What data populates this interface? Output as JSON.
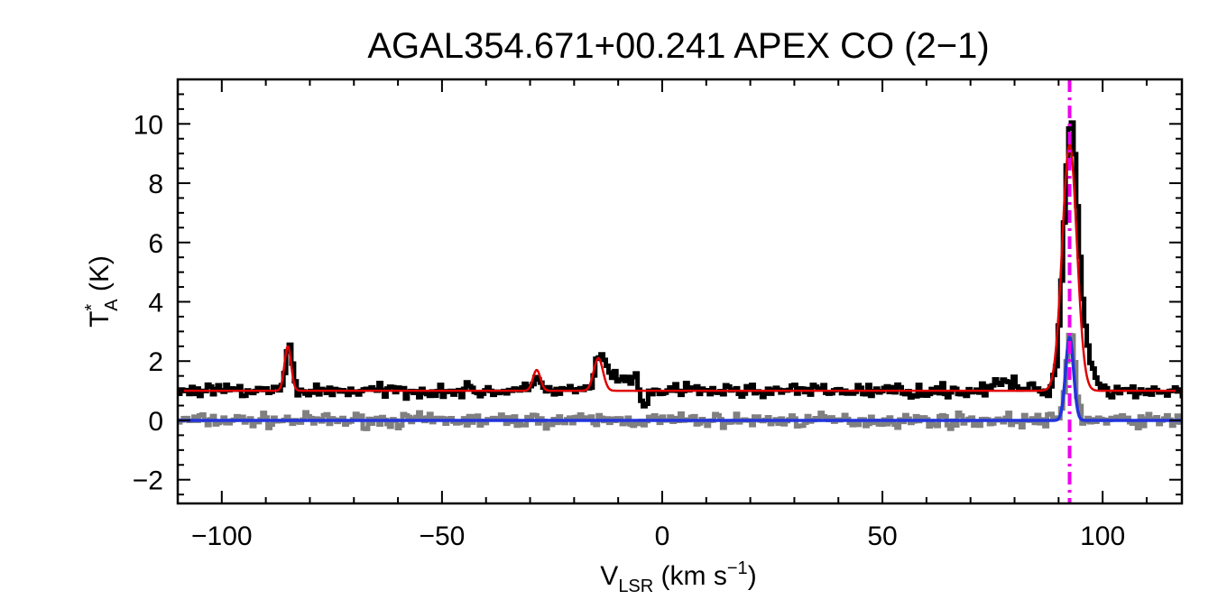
{
  "chart_data": {
    "type": "line",
    "title": "AGAL354.671+00.241   APEX CO (2−1)",
    "xlabel": {
      "main": "V",
      "sub": "LSR",
      "unit": " (km s",
      "sup": "−1",
      "close": ")"
    },
    "ylabel": {
      "main": "T",
      "sup": "*",
      "sub": "A",
      "unit": " (K)"
    },
    "xlim": [
      -110,
      118
    ],
    "ylim": [
      -2.8,
      11.5
    ],
    "x_ticks": [
      -100,
      -50,
      0,
      50,
      100
    ],
    "x_tick_labels": [
      "−100",
      "−50",
      "0",
      "50",
      "100"
    ],
    "y_ticks": [
      -2,
      0,
      2,
      4,
      6,
      8,
      10
    ],
    "y_tick_labels": [
      "−2",
      "0",
      "2",
      "4",
      "6",
      "8",
      "10"
    ],
    "grid": false,
    "colors": {
      "spectrum": "#000000",
      "fit": "#e00000",
      "residual": "#808080",
      "component": "#2233dd",
      "vline": "#ee00ee"
    },
    "vline_x": 92.5,
    "spectrum": {
      "baseline": 1.0,
      "peaks": [
        {
          "x": -85,
          "amp": 1.55,
          "sigma": 0.7
        },
        {
          "x": -28.5,
          "amp": 0.55,
          "sigma": 0.8
        },
        {
          "x": -14.5,
          "amp": 1.05,
          "sigma": 1.0
        },
        {
          "x": -11.5,
          "amp": 0.55,
          "sigma": 2.0
        },
        {
          "x": -6.5,
          "amp": 0.35,
          "sigma": 1.2
        },
        {
          "x": -4.5,
          "amp": -0.75,
          "sigma": 0.7
        },
        {
          "x": 78,
          "amp": 0.25,
          "sigma": 3.0
        },
        {
          "x": 92.5,
          "amp": 8.7,
          "sigma": 1.6
        },
        {
          "x": 95.5,
          "amp": 1.1,
          "sigma": 2.0
        }
      ]
    },
    "fit": {
      "baseline": 1.0,
      "peaks": [
        {
          "x": -85,
          "amp": 1.5,
          "sigma": 0.75
        },
        {
          "x": -28.5,
          "amp": 0.7,
          "sigma": 0.85
        },
        {
          "x": -14.5,
          "amp": 1.1,
          "sigma": 1.05
        },
        {
          "x": 92.5,
          "amp": 8.3,
          "sigma": 1.65
        }
      ]
    },
    "residual": {
      "baseline": 0.0,
      "peaks": [
        {
          "x": 92.5,
          "amp": 3.0,
          "sigma": 1.0
        }
      ]
    },
    "component": {
      "baseline": 0.0,
      "peaks": [
        {
          "x": 92.5,
          "amp": 2.8,
          "sigma": 0.9
        }
      ]
    }
  }
}
